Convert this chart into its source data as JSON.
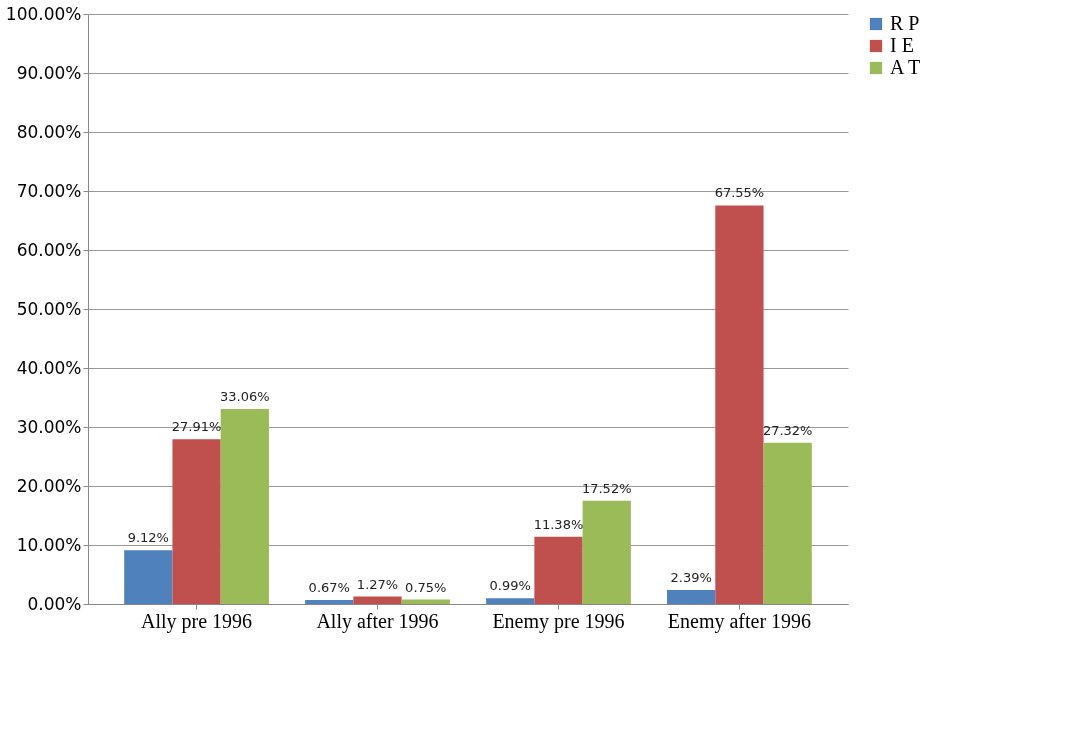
{
  "chart_data": {
    "type": "bar",
    "categories": [
      "Ally pre 1996",
      "Ally after 1996",
      "Enemy pre 1996",
      "Enemy after 1996"
    ],
    "series": [
      {
        "name": "R P",
        "color": "#4f81bd",
        "values": [
          9.12,
          0.67,
          0.99,
          2.39
        ],
        "value_labels": [
          "9.12%",
          "0.67%",
          "0.99%",
          "2.39%"
        ]
      },
      {
        "name": "I E",
        "color": "#c0504d",
        "values": [
          27.91,
          1.27,
          11.38,
          67.55
        ],
        "value_labels": [
          "27.91%",
          "1.27%",
          "11.38%",
          "67.55%"
        ]
      },
      {
        "name": "A T",
        "color": "#9bbb59",
        "values": [
          33.06,
          0.75,
          17.52,
          27.32
        ],
        "value_labels": [
          "33.06%",
          "0.75%",
          "17.52%",
          "27.32%"
        ]
      }
    ],
    "ylim": [
      0,
      100
    ],
    "yticks": [
      {
        "value": 0,
        "label": "0.00%"
      },
      {
        "value": 10,
        "label": "10.00%"
      },
      {
        "value": 20,
        "label": "20.00%"
      },
      {
        "value": 30,
        "label": "30.00%"
      },
      {
        "value": 40,
        "label": "40.00%"
      },
      {
        "value": 50,
        "label": "50.00%"
      },
      {
        "value": 60,
        "label": "60.00%"
      },
      {
        "value": 70,
        "label": "70.00%"
      },
      {
        "value": 80,
        "label": "80.00%"
      },
      {
        "value": 90,
        "label": "90.00%"
      },
      {
        "value": 100,
        "label": "100.00%"
      }
    ],
    "grid": "y",
    "legend": "right"
  }
}
